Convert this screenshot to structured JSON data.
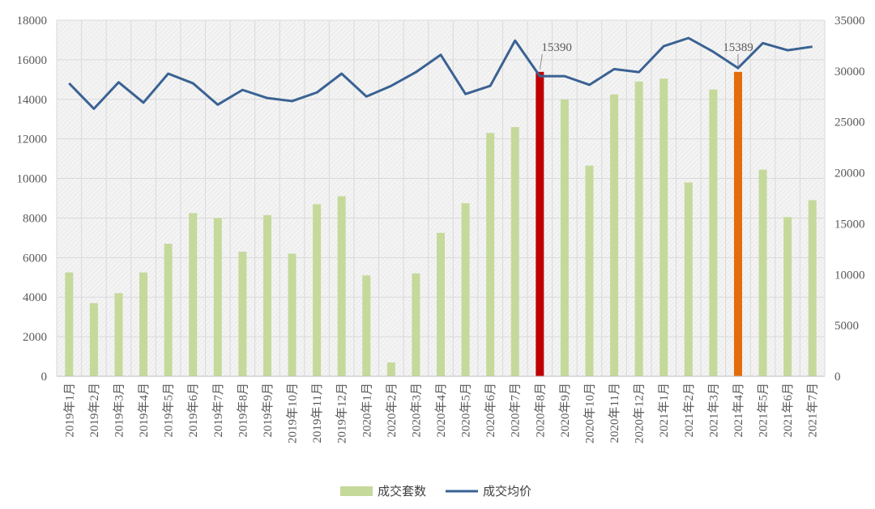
{
  "chart_data": {
    "type": "bar+line",
    "categories": [
      "2019年1月",
      "2019年2月",
      "2019年3月",
      "2019年4月",
      "2019年5月",
      "2019年6月",
      "2019年7月",
      "2019年8月",
      "2019年9月",
      "2019年10月",
      "2019年11月",
      "2019年12月",
      "2020年1月",
      "2020年2月",
      "2020年3月",
      "2020年4月",
      "2020年5月",
      "2020年6月",
      "2020年7月",
      "2020年8月",
      "2020年9月",
      "2020年10月",
      "2020年11月",
      "2020年12月",
      "2021年1月",
      "2021年2月",
      "2021年3月",
      "2021年4月",
      "2021年5月",
      "2021年6月",
      "2021年7月"
    ],
    "series": [
      {
        "name": "成交套数",
        "type": "bar",
        "axis": "left",
        "color": "#c5d99b",
        "values": [
          5250,
          3700,
          4200,
          5250,
          6700,
          8250,
          8000,
          6300,
          8150,
          6200,
          8700,
          9100,
          5100,
          700,
          5200,
          7250,
          8750,
          12300,
          12600,
          15390,
          14000,
          10650,
          14250,
          14900,
          15050,
          9800,
          14500,
          15389,
          10450,
          8050,
          8900
        ]
      },
      {
        "name": "成交均价",
        "type": "line",
        "axis": "right",
        "color": "#3a6293",
        "values": [
          28800,
          26300,
          28900,
          26900,
          29750,
          28800,
          26700,
          28150,
          27350,
          27050,
          27900,
          29750,
          27500,
          28550,
          29900,
          31600,
          27750,
          28550,
          33000,
          29500,
          29500,
          28650,
          30200,
          29900,
          32450,
          33250,
          31900,
          30300,
          32750,
          32050,
          32400
        ]
      }
    ],
    "highlights": [
      {
        "category": "2020年8月",
        "color": "#c00000",
        "label": "15390"
      },
      {
        "category": "2021年4月",
        "color": "#e46c0a",
        "label": "15389"
      }
    ],
    "left_axis": {
      "range": [
        0,
        18000
      ],
      "ticks": [
        0,
        2000,
        4000,
        6000,
        8000,
        10000,
        12000,
        14000,
        16000,
        18000
      ]
    },
    "right_axis": {
      "range": [
        0,
        35000
      ],
      "ticks": [
        0,
        5000,
        10000,
        15000,
        20000,
        25000,
        30000,
        35000
      ]
    },
    "grid": true,
    "legend_position": "bottom"
  }
}
